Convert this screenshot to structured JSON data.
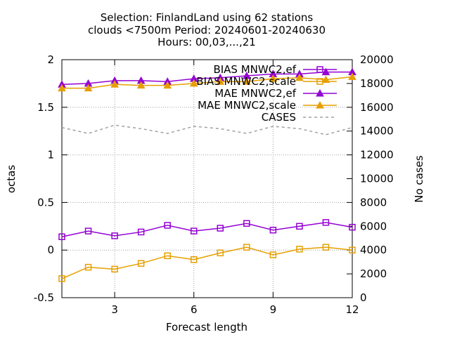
{
  "chart_data": {
    "type": "line",
    "title_lines": [
      "Selection: FinlandLand using    62 stations",
      "clouds <7500m   Period: 20240601-20240630",
      "Hours: 00,03,...,21"
    ],
    "xlabel": "Forecast length",
    "ylabel": "octas",
    "y2label": "No cases",
    "xlim": [
      1,
      12
    ],
    "ylim": [
      -0.5,
      2
    ],
    "y2lim": [
      0,
      20000
    ],
    "x_ticks": [
      3,
      6,
      9,
      12
    ],
    "y_ticks": [
      -0.5,
      0,
      0.5,
      1,
      1.5,
      2
    ],
    "y2_ticks": [
      0,
      2000,
      4000,
      6000,
      8000,
      10000,
      12000,
      14000,
      16000,
      18000,
      20000
    ],
    "grid": true,
    "legend_position": "top-right",
    "x": [
      1,
      2,
      3,
      4,
      5,
      6,
      7,
      8,
      9,
      10,
      11,
      12
    ],
    "series": [
      {
        "name": "BIAS MNWC2,ef",
        "axis": "y",
        "color": "#9400d3",
        "marker": "open-square",
        "values": [
          0.14,
          0.2,
          0.15,
          0.19,
          0.26,
          0.2,
          0.23,
          0.28,
          0.21,
          0.25,
          0.29,
          0.24
        ]
      },
      {
        "name": "BIAS MNWC2,scale",
        "axis": "y",
        "color": "#e69f00",
        "marker": "open-square",
        "values": [
          -0.3,
          -0.18,
          -0.2,
          -0.14,
          -0.06,
          -0.1,
          -0.03,
          0.03,
          -0.05,
          0.01,
          0.03,
          0.0
        ]
      },
      {
        "name": "MAE MNWC2,ef",
        "axis": "y",
        "color": "#9400d3",
        "marker": "filled-triangle",
        "values": [
          1.74,
          1.75,
          1.78,
          1.78,
          1.77,
          1.8,
          1.81,
          1.83,
          1.85,
          1.85,
          1.87,
          1.87
        ]
      },
      {
        "name": "MAE MNWC2,scale",
        "axis": "y",
        "color": "#e69f00",
        "marker": "filled-triangle",
        "values": [
          1.7,
          1.7,
          1.74,
          1.73,
          1.73,
          1.75,
          1.77,
          1.77,
          1.8,
          1.81,
          1.79,
          1.82
        ]
      },
      {
        "name": "CASES",
        "axis": "y2",
        "color": "#a0a0a0",
        "marker": "none",
        "dash": true,
        "values": [
          14300,
          13800,
          14500,
          14200,
          13800,
          14400,
          14200,
          13800,
          14400,
          14200,
          13700,
          14300
        ]
      }
    ]
  }
}
